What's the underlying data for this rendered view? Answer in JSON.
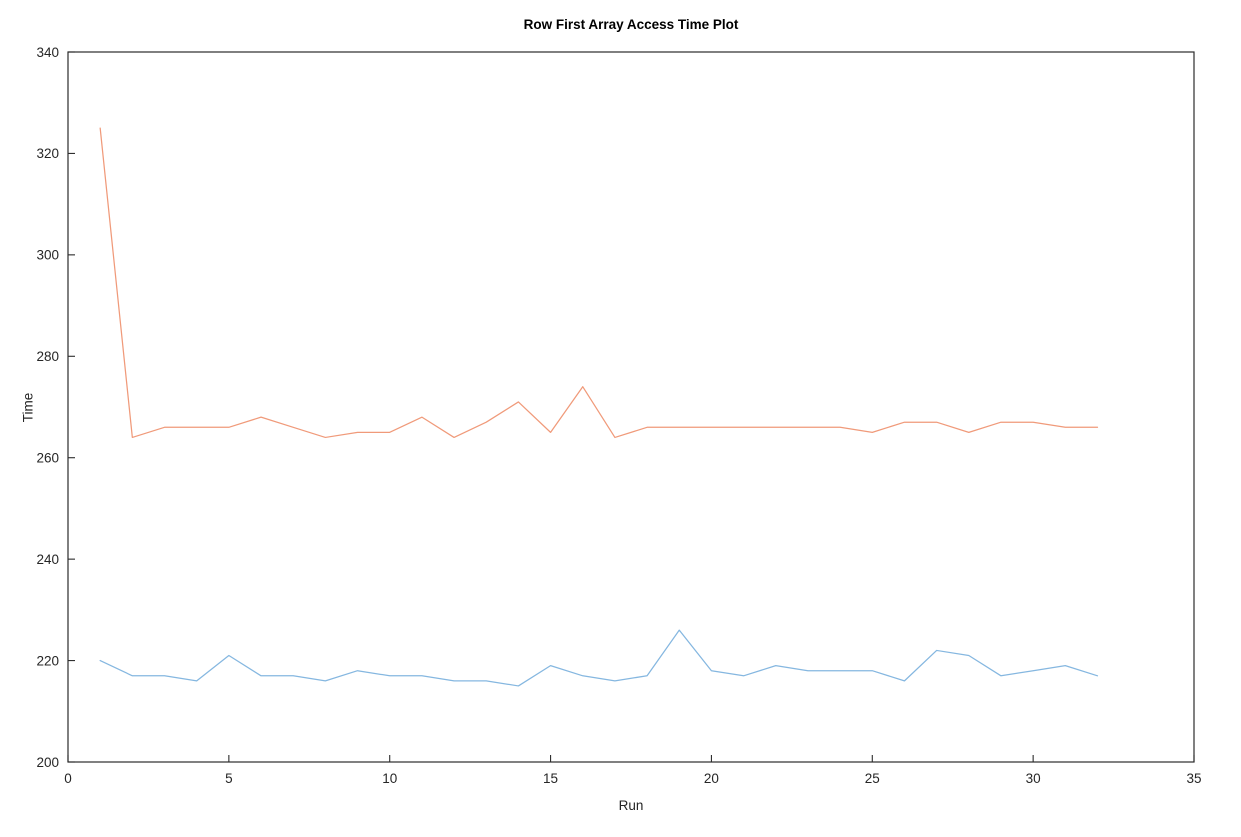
{
  "chart_data": {
    "type": "line",
    "title": "Row First Array Access Time Plot",
    "xlabel": "Run",
    "ylabel": "Time",
    "xlim": [
      0,
      35
    ],
    "ylim": [
      200,
      340
    ],
    "xticks": [
      0,
      5,
      10,
      15,
      20,
      25,
      30,
      35
    ],
    "yticks": [
      200,
      220,
      240,
      260,
      280,
      300,
      320,
      340
    ],
    "grid": false,
    "legend": "none",
    "box": true,
    "x": [
      1,
      2,
      3,
      4,
      5,
      6,
      7,
      8,
      9,
      10,
      11,
      12,
      13,
      14,
      15,
      16,
      17,
      18,
      19,
      20,
      21,
      22,
      23,
      24,
      25,
      26,
      27,
      28,
      29,
      30,
      31,
      32
    ],
    "series": [
      {
        "name": "orange-series",
        "color": "#f09a7a",
        "values": [
          325,
          264,
          266,
          266,
          266,
          268,
          266,
          264,
          265,
          265,
          268,
          264,
          267,
          271,
          265,
          274,
          264,
          266,
          266,
          266,
          266,
          266,
          266,
          266,
          265,
          267,
          267,
          265,
          267,
          267,
          266,
          266
        ]
      },
      {
        "name": "blue-series",
        "color": "#85b7e0",
        "values": [
          220,
          217,
          217,
          216,
          221,
          217,
          217,
          216,
          218,
          217,
          217,
          216,
          216,
          215,
          219,
          217,
          216,
          217,
          226,
          218,
          217,
          219,
          218,
          218,
          218,
          216,
          222,
          221,
          217,
          218,
          219,
          217
        ]
      }
    ]
  },
  "axis_color": "#2b2b2b"
}
